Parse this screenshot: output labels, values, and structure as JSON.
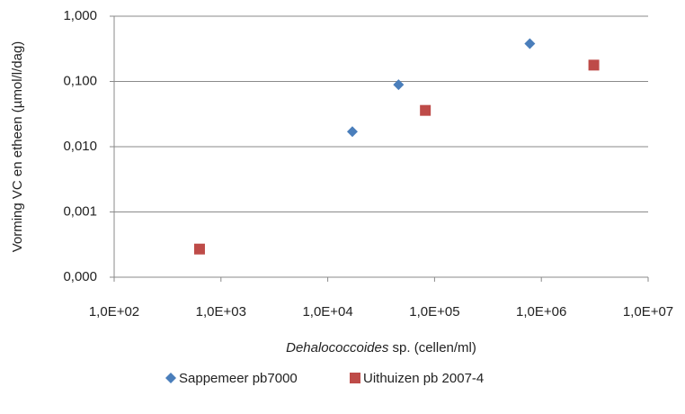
{
  "chart_data": {
    "type": "scatter",
    "y_label": "Vorming VC en etheen (µmol/l/dag)",
    "x_label_parts": [
      "Dehalococcoides",
      " sp. (cellen/ml)"
    ],
    "x_log": true,
    "y_log": true,
    "grid": true,
    "legend": "bottom",
    "xlim": [
      100,
      10000000
    ],
    "xticks": [
      {
        "value": 100,
        "label": "1,0E+02"
      },
      {
        "value": 1000,
        "label": "1,0E+03"
      },
      {
        "value": 10000,
        "label": "1,0E+04"
      },
      {
        "value": 100000,
        "label": "1,0E+05"
      },
      {
        "value": 1000000,
        "label": "1,0E+06"
      },
      {
        "value": 10000000,
        "label": "1,0E+07"
      }
    ],
    "ylim": [
      0.0001,
      1
    ],
    "yticks": [
      {
        "value": 0.0001,
        "label": "0,000"
      },
      {
        "value": 0.001,
        "label": "0,001"
      },
      {
        "value": 0.01,
        "label": "0,010"
      },
      {
        "value": 0.1,
        "label": "0,100"
      },
      {
        "value": 1,
        "label": "1,000"
      }
    ],
    "series": [
      {
        "name": "Sappemeer pb7000",
        "color": "#4a7ebb",
        "marker": "diamond",
        "x": [
          17000,
          46000,
          780000
        ],
        "values": [
          0.017,
          0.089,
          0.38
        ]
      },
      {
        "name": "Uithuizen pb 2007-4",
        "color": "#be4b48",
        "marker": "square",
        "x": [
          630,
          82000,
          3100000
        ],
        "values": [
          0.00027,
          0.036,
          0.178
        ]
      }
    ]
  }
}
